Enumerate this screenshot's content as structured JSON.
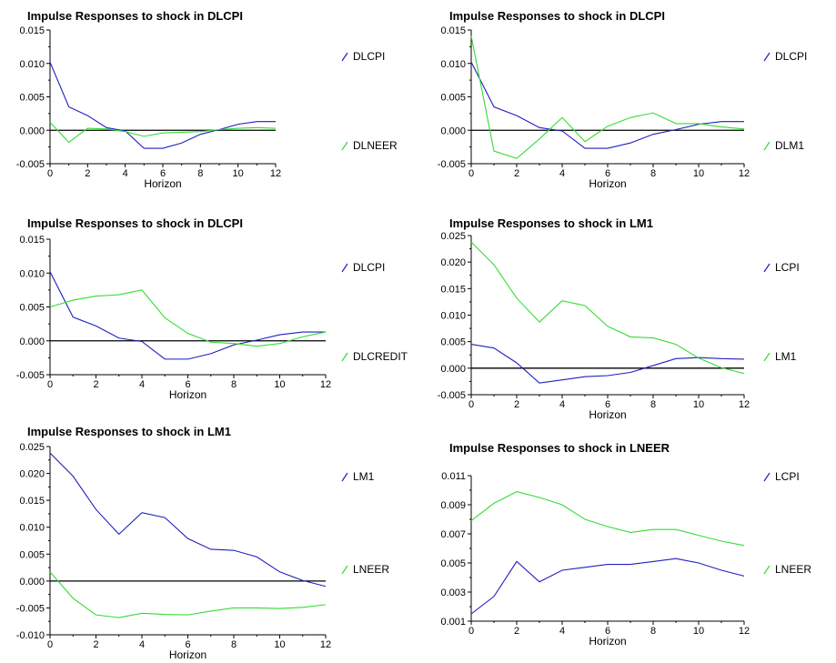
{
  "colors": {
    "series1": "#1f1fbf",
    "series2": "#33dd33",
    "axis": "#000000"
  },
  "chart_data": [
    {
      "type": "line",
      "title": "Impulse Responses to shock in DLCPI",
      "xlabel": "Horizon",
      "x": [
        0,
        1,
        2,
        3,
        4,
        5,
        6,
        7,
        8,
        9,
        10,
        11,
        12
      ],
      "xticks": [
        "0",
        "2",
        "4",
        "6",
        "8",
        "10",
        "12"
      ],
      "yticks": [
        "-0.005",
        "0.000",
        "0.005",
        "0.010",
        "0.015"
      ],
      "ylim": [
        -0.005,
        0.015
      ],
      "legend_position": "right",
      "series": [
        {
          "name": "DLCPI",
          "values": [
            0.0102,
            0.0035,
            0.0022,
            0.0004,
            -0.0001,
            -0.0027,
            -0.0027,
            -0.0019,
            -0.0006,
            0.0001,
            0.0009,
            0.0013,
            0.0013
          ]
        },
        {
          "name": "DLNEER",
          "values": [
            0.0012,
            -0.0018,
            0.0003,
            0.0002,
            -0.0002,
            -0.0009,
            -0.0004,
            -0.0003,
            -0.0002,
            0.0001,
            0.0003,
            0.0004,
            0.0003
          ]
        }
      ]
    },
    {
      "type": "line",
      "title": "Impulse Responses to shock in DLCPI",
      "xlabel": "Horizon",
      "x": [
        0,
        1,
        2,
        3,
        4,
        5,
        6,
        7,
        8,
        9,
        10,
        11,
        12
      ],
      "xticks": [
        "0",
        "2",
        "4",
        "6",
        "8",
        "10",
        "12"
      ],
      "yticks": [
        "-0.005",
        "0.000",
        "0.005",
        "0.010",
        "0.015"
      ],
      "ylim": [
        -0.005,
        0.015
      ],
      "legend_position": "right",
      "series": [
        {
          "name": "DLCPI",
          "values": [
            0.0102,
            0.0035,
            0.0022,
            0.0004,
            -0.0001,
            -0.0027,
            -0.0027,
            -0.0019,
            -0.0006,
            0.0001,
            0.0009,
            0.0013,
            0.0013
          ]
        },
        {
          "name": "DLM1",
          "values": [
            0.0141,
            -0.0031,
            -0.0042,
            -0.0013,
            0.0019,
            -0.0017,
            0.0006,
            0.0019,
            0.0026,
            0.001,
            0.001,
            0.0005,
            0.0002
          ]
        }
      ]
    },
    {
      "type": "line",
      "title": "Impulse Responses to shock in DLCPI",
      "xlabel": "Horizon",
      "x": [
        0,
        1,
        2,
        3,
        4,
        5,
        6,
        7,
        8,
        9,
        10,
        11,
        12
      ],
      "xticks": [
        "0",
        "2",
        "4",
        "6",
        "8",
        "10",
        "12"
      ],
      "yticks": [
        "-0.005",
        "0.000",
        "0.005",
        "0.010",
        "0.015"
      ],
      "ylim": [
        -0.005,
        0.015
      ],
      "legend_position": "right",
      "series": [
        {
          "name": "DLCPI",
          "values": [
            0.0102,
            0.0035,
            0.0022,
            0.0004,
            -0.0001,
            -0.0027,
            -0.0027,
            -0.0019,
            -0.0006,
            0.0001,
            0.0009,
            0.0013,
            0.0013
          ]
        },
        {
          "name": "DLCREDIT",
          "values": [
            0.005,
            0.006,
            0.0066,
            0.0068,
            0.0075,
            0.0034,
            0.0011,
            -0.0002,
            -0.0004,
            -0.0008,
            -0.0004,
            0.0006,
            0.0013
          ]
        }
      ]
    },
    {
      "type": "line",
      "title": "Impulse Responses to shock in LM1",
      "xlabel": "Horizon",
      "x": [
        0,
        1,
        2,
        3,
        4,
        5,
        6,
        7,
        8,
        9,
        10,
        11,
        12
      ],
      "xticks": [
        "0",
        "2",
        "4",
        "6",
        "8",
        "10",
        "12"
      ],
      "yticks": [
        "-0.005",
        "0.000",
        "0.005",
        "0.010",
        "0.015",
        "0.020",
        "0.025"
      ],
      "ylim": [
        -0.005,
        0.025
      ],
      "legend_position": "right",
      "series": [
        {
          "name": "LCPI",
          "values": [
            0.0045,
            0.0038,
            0.001,
            -0.0028,
            -0.0022,
            -0.0016,
            -0.0014,
            -0.0008,
            0.0005,
            0.0018,
            0.002,
            0.0018,
            0.0017
          ]
        },
        {
          "name": "LM1",
          "values": [
            0.0238,
            0.0195,
            0.0132,
            0.0087,
            0.0127,
            0.0118,
            0.0079,
            0.0059,
            0.0057,
            0.0045,
            0.0019,
            0.0001,
            -0.001
          ]
        }
      ]
    },
    {
      "type": "line",
      "title": "Impulse Responses to shock in LM1",
      "xlabel": "Horizon",
      "x": [
        0,
        1,
        2,
        3,
        4,
        5,
        6,
        7,
        8,
        9,
        10,
        11,
        12
      ],
      "xticks": [
        "0",
        "2",
        "4",
        "6",
        "8",
        "10",
        "12"
      ],
      "yticks": [
        "-0.010",
        "-0.005",
        "0.000",
        "0.005",
        "0.010",
        "0.015",
        "0.020",
        "0.025"
      ],
      "ylim": [
        -0.01,
        0.025
      ],
      "legend_position": "right",
      "series": [
        {
          "name": "LM1",
          "values": [
            0.0238,
            0.0195,
            0.0133,
            0.0087,
            0.0127,
            0.0118,
            0.0079,
            0.0059,
            0.0057,
            0.0045,
            0.0017,
            0.0001,
            -0.001
          ]
        },
        {
          "name": "LNEER",
          "values": [
            0.0017,
            -0.0032,
            -0.0063,
            -0.0068,
            -0.006,
            -0.0062,
            -0.0063,
            -0.0056,
            -0.005,
            -0.005,
            -0.0051,
            -0.0049,
            -0.0044
          ]
        }
      ]
    },
    {
      "type": "line",
      "title": "Impulse Responses to shock in LNEER",
      "xlabel": "Horizon",
      "x": [
        0,
        1,
        2,
        3,
        4,
        5,
        6,
        7,
        8,
        9,
        10,
        11,
        12
      ],
      "xticks": [
        "0",
        "2",
        "4",
        "6",
        "8",
        "10",
        "12"
      ],
      "yticks": [
        "0.001",
        "0.003",
        "0.005",
        "0.007",
        "0.009",
        "0.011"
      ],
      "ylim": [
        0.001,
        0.011
      ],
      "legend_position": "right",
      "series": [
        {
          "name": "LCPI",
          "values": [
            0.0015,
            0.0027,
            0.0051,
            0.0037,
            0.0045,
            0.0047,
            0.0049,
            0.0049,
            0.0051,
            0.0053,
            0.005,
            0.0045,
            0.0041
          ]
        },
        {
          "name": "LNEER",
          "values": [
            0.0079,
            0.0091,
            0.0099,
            0.0095,
            0.009,
            0.008,
            0.0075,
            0.0071,
            0.0073,
            0.0073,
            0.0069,
            0.0065,
            0.0062
          ]
        }
      ]
    }
  ]
}
